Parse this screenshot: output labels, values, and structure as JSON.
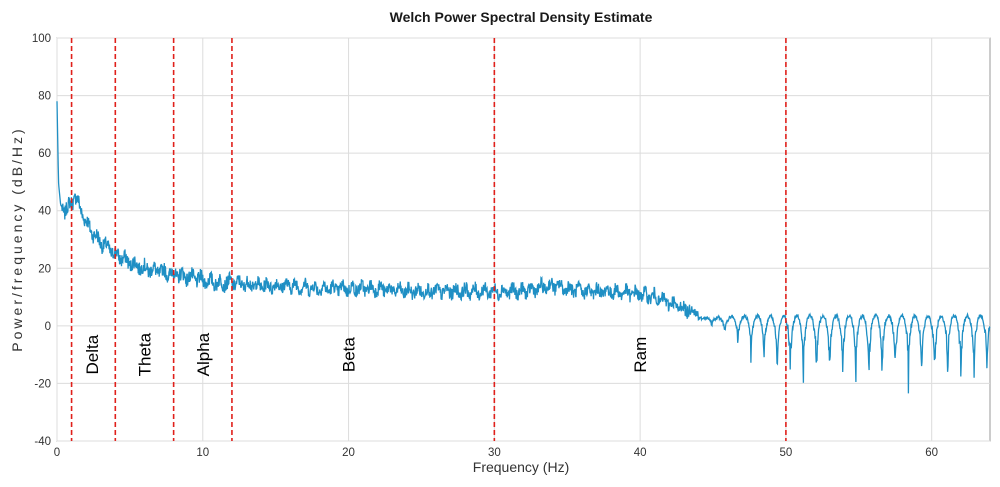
{
  "chart_data": {
    "type": "line",
    "title": "Welch Power Spectral Density Estimate",
    "xlabel": "Frequency (Hz)",
    "ylabel": "Power/frequency (dB/Hz)",
    "xlim": [
      0,
      64
    ],
    "ylim": [
      -40,
      100
    ],
    "xticks": [
      0,
      10,
      20,
      30,
      40,
      50,
      60
    ],
    "yticks": [
      -40,
      -20,
      0,
      20,
      40,
      60,
      80,
      100
    ],
    "grid": true,
    "series_color": "#1f8fc4",
    "marker_color": "#e0201b",
    "band_boundaries": [
      1,
      4,
      8,
      12,
      30,
      50
    ],
    "band_labels": [
      {
        "text": "Delta",
        "x": 2.4,
        "y": -10
      },
      {
        "text": "Theta",
        "x": 6.0,
        "y": -10
      },
      {
        "text": "Alpha",
        "x": 10.0,
        "y": -10
      },
      {
        "text": "Beta",
        "x": 20.0,
        "y": -10
      },
      {
        "text": "Ram",
        "x": 40.0,
        "y": -10
      }
    ],
    "series": [
      {
        "x": [
          0,
          0.1,
          0.25,
          0.5,
          0.75,
          1.0,
          1.25,
          1.5,
          2,
          2.5,
          3,
          3.5,
          4,
          5,
          6,
          7,
          8,
          9,
          10,
          11,
          12,
          14,
          16,
          18,
          20,
          22,
          24,
          26,
          28,
          30,
          32,
          33,
          34,
          35,
          36,
          38,
          40,
          41,
          42,
          43,
          44,
          45,
          46,
          47,
          48,
          49,
          50,
          52,
          54,
          56,
          58,
          60,
          62,
          64
        ],
        "y": [
          78,
          50,
          42,
          40,
          41,
          43,
          45,
          42,
          36,
          32,
          29,
          27,
          25,
          22,
          20,
          19,
          18,
          17,
          16,
          15,
          15,
          14,
          14,
          13,
          13,
          13,
          12,
          12,
          12,
          12,
          12,
          13,
          14,
          13,
          12,
          12,
          11,
          10,
          8,
          6,
          5,
          3,
          1,
          -1,
          -3,
          -5,
          -7,
          -8,
          -9,
          -10,
          -10,
          -11,
          -12,
          -12
        ]
      }
    ]
  }
}
